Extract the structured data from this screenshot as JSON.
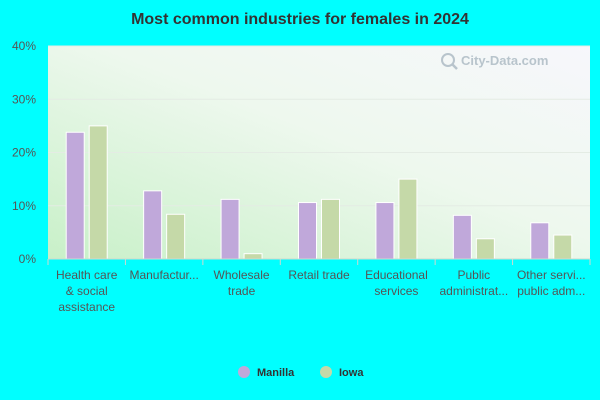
{
  "chart_data": {
    "type": "bar",
    "title": "Most common industries for females in 2024",
    "categories": [
      [
        "Health care",
        "& social",
        "assistance"
      ],
      [
        "Manufactur..."
      ],
      [
        "Wholesale",
        "trade"
      ],
      [
        "Retail trade"
      ],
      [
        "Educational",
        "services"
      ],
      [
        "Public",
        "administrat..."
      ],
      [
        "Other servi...",
        "public adm..."
      ]
    ],
    "series": [
      {
        "name": "Manilla",
        "color": "#c0a8da",
        "values": [
          23.8,
          12.8,
          11.2,
          10.6,
          10.6,
          8.2,
          6.8
        ]
      },
      {
        "name": "Iowa",
        "color": "#c5d9a8",
        "values": [
          25.0,
          8.4,
          1.0,
          11.2,
          15.0,
          3.8,
          4.5
        ]
      }
    ],
    "yticks": [
      "0%",
      "10%",
      "20%",
      "30%",
      "40%"
    ],
    "ylim": [
      0,
      40
    ],
    "grid": true,
    "legend": "bottom-center"
  },
  "watermark": {
    "text": "City-Data.com",
    "icon": "magnifier-icon"
  }
}
